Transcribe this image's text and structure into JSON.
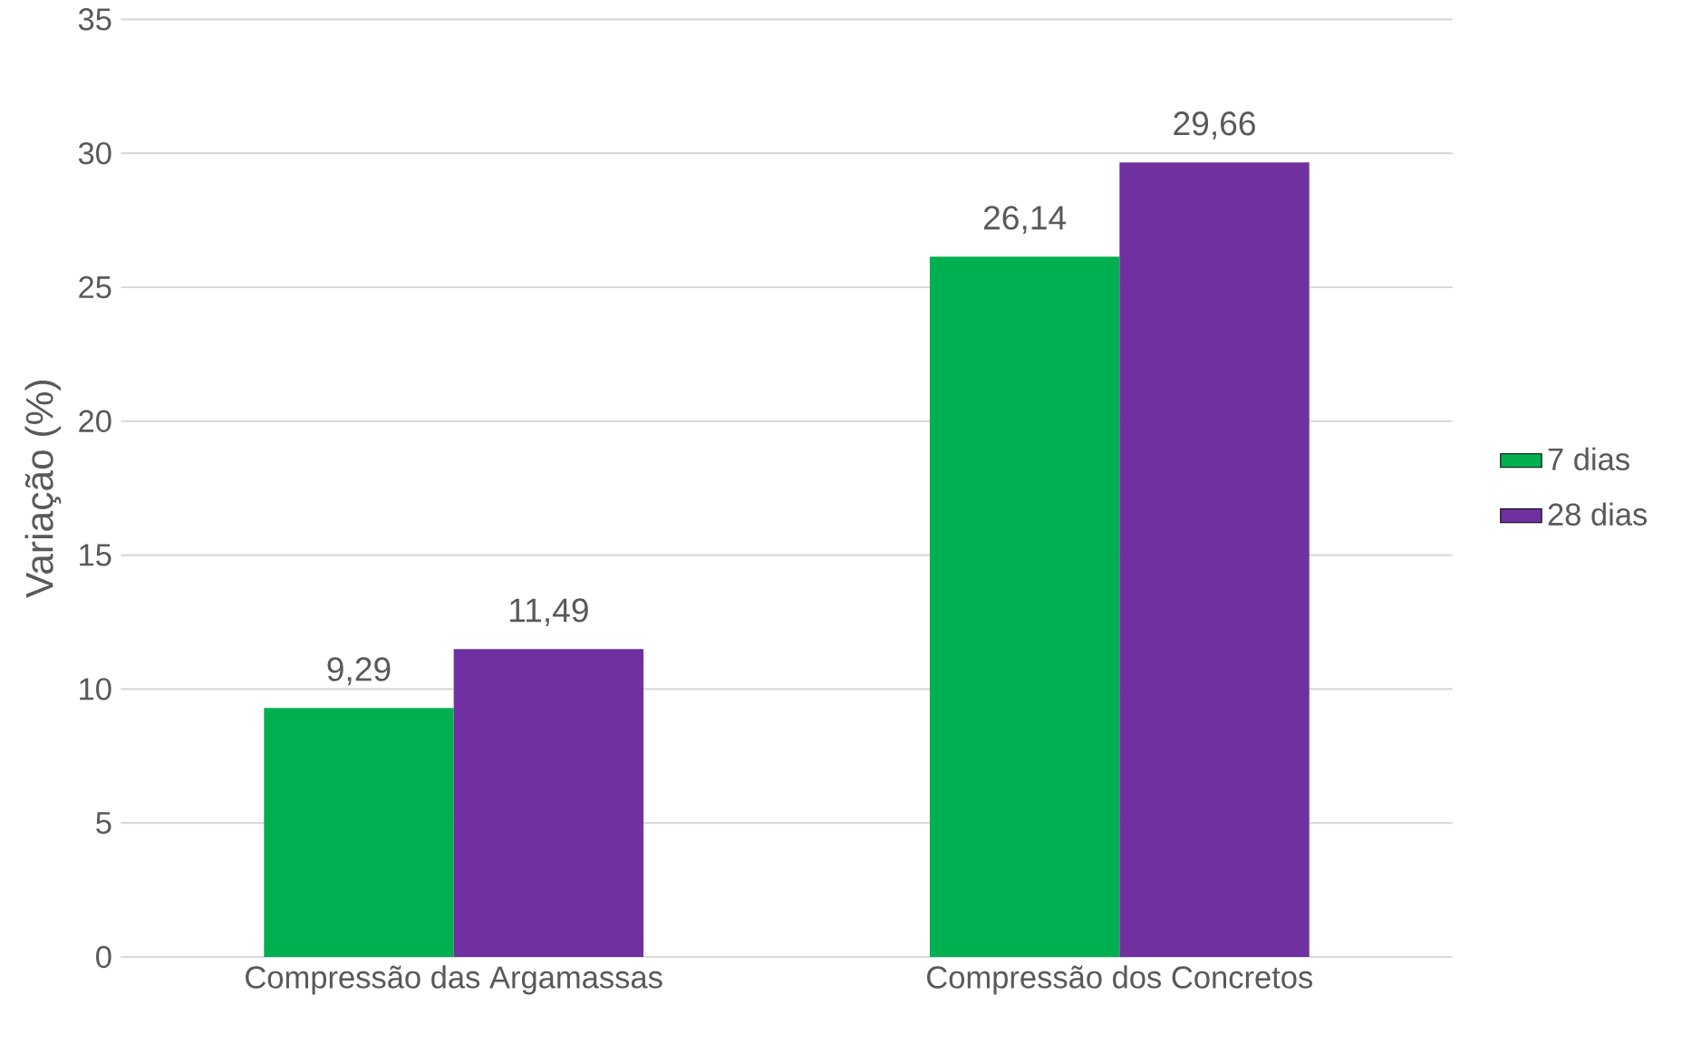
{
  "chart_data": {
    "type": "bar",
    "ylabel": "Variação (%)",
    "categories": [
      "Compressão das Argamassas",
      "Compressão dos Concretos"
    ],
    "series": [
      {
        "name": "7 dias",
        "color": "#00b050",
        "values": [
          9.29,
          26.14
        ],
        "value_labels": [
          "9,29",
          "26,14"
        ]
      },
      {
        "name": "28 dias",
        "color": "#7030a0",
        "values": [
          11.49,
          29.66
        ],
        "value_labels": [
          "11,49",
          "29,66"
        ]
      }
    ],
    "ylim": [
      0,
      35
    ],
    "yticks": [
      0,
      5,
      10,
      15,
      20,
      25,
      30,
      35
    ],
    "grid": "y",
    "legend": "right"
  }
}
